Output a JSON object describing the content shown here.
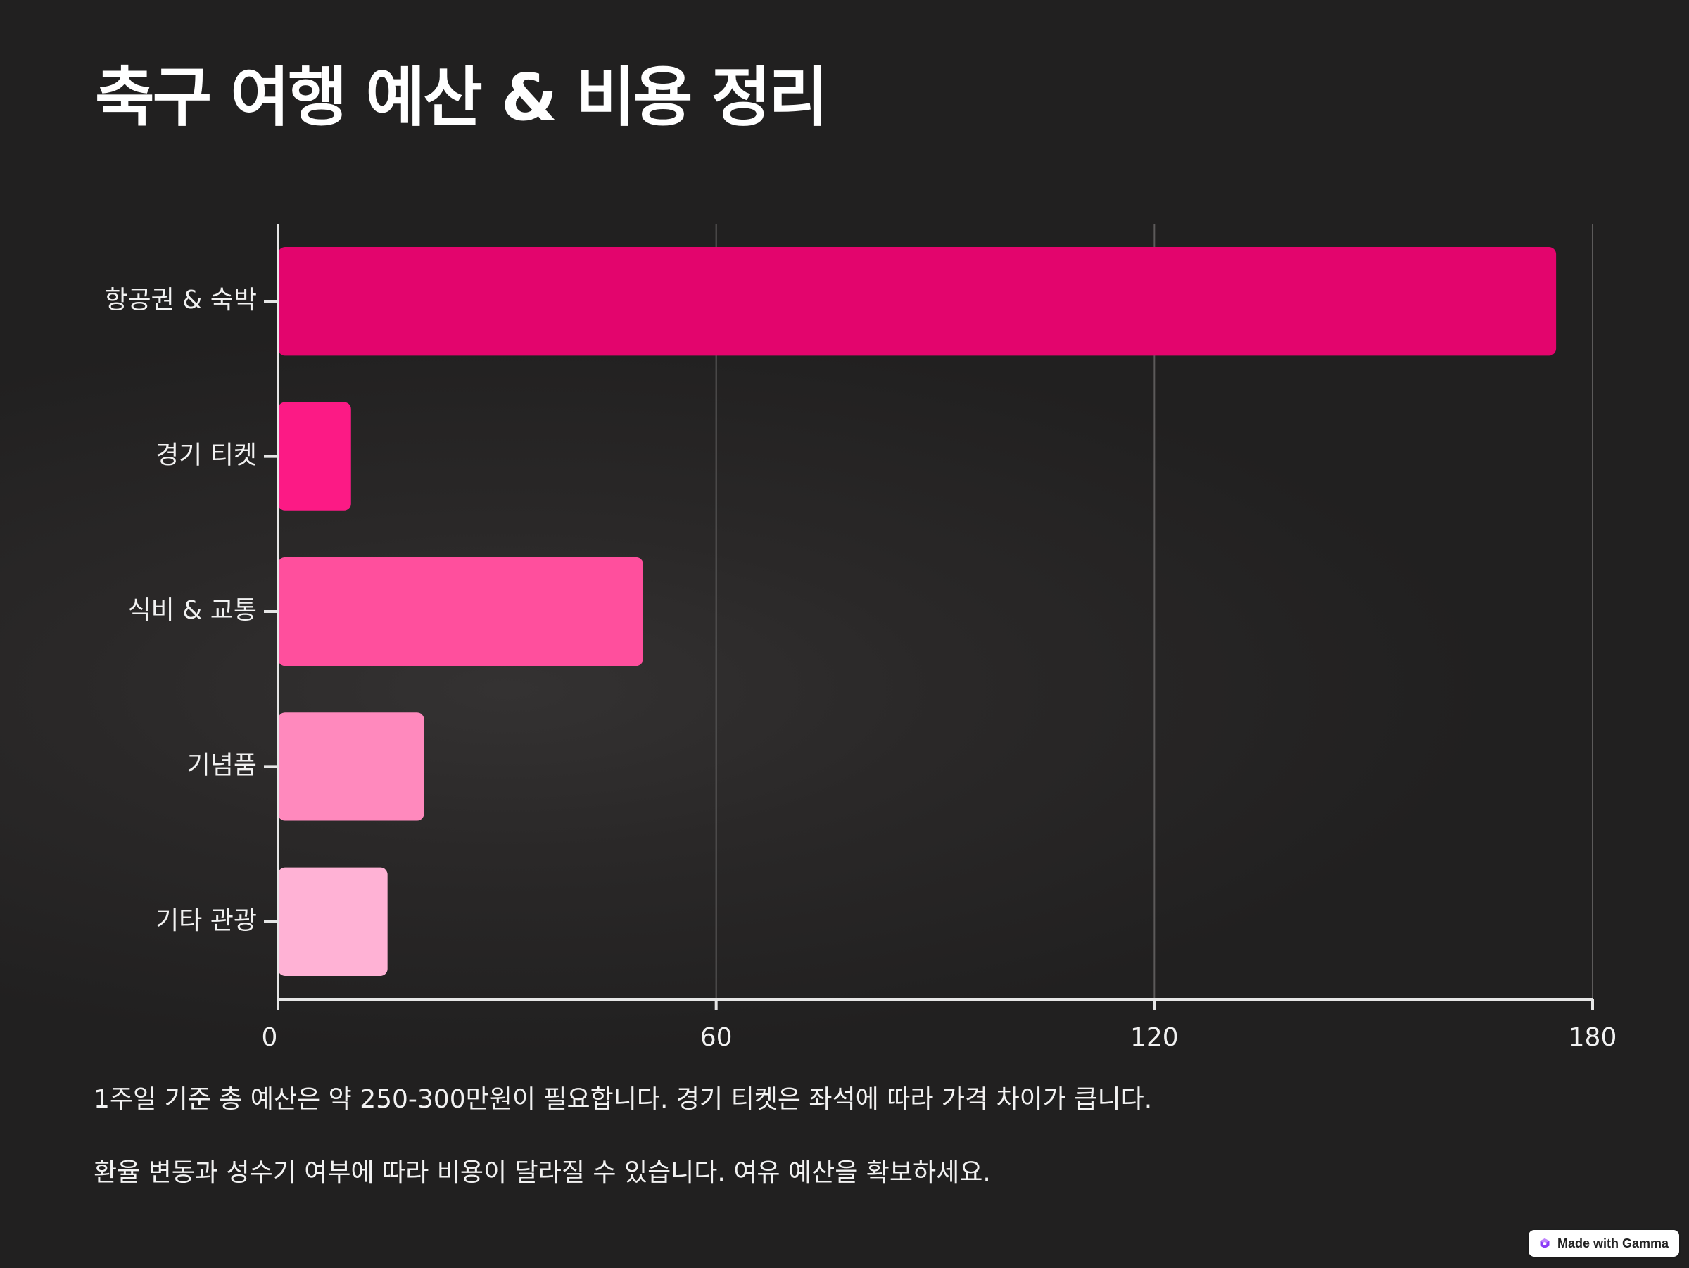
{
  "title": "축구 여행 예산 & 비용 정리",
  "chart_data": {
    "type": "bar",
    "orientation": "horizontal",
    "categories": [
      "항공권 & 숙박",
      "경기 티켓",
      "식비 & 교통",
      "기념품",
      "기타 관광"
    ],
    "values": [
      175,
      10,
      50,
      20,
      15
    ],
    "colors": [
      "#e3056d",
      "#fc1a85",
      "#ff4f9d",
      "#ff89bd",
      "#ffb2d5"
    ],
    "xlim": [
      0,
      180
    ],
    "xticks": [
      0,
      60,
      120,
      180
    ],
    "grid": true,
    "title": "",
    "xlabel": "",
    "ylabel": ""
  },
  "notes": [
    "1주일 기준 총 예산은 약 250-300만원이 필요합니다. 경기 티켓은 좌석에 따라 가격 차이가 큽니다.",
    "환율 변동과 성수기 여부에 따라 비용이 달라질 수 있습니다. 여유 예산을 확보하세요."
  ],
  "badge": {
    "label": "Made with Gamma",
    "icon": "gamma-logo-icon"
  }
}
